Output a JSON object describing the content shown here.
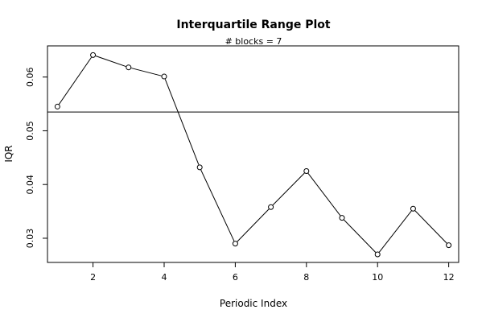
{
  "chart_data": {
    "type": "line",
    "title": "Interquartile Range Plot",
    "subtitle": "# blocks =  7",
    "xlabel": "Periodic Index",
    "ylabel": "IQR",
    "x": [
      1,
      2,
      3,
      4,
      5,
      6,
      7,
      8,
      9,
      10,
      11,
      12
    ],
    "y": [
      0.0545,
      0.0641,
      0.0618,
      0.0601,
      0.0432,
      0.029,
      0.0358,
      0.0425,
      0.0338,
      0.027,
      0.0355,
      0.0287
    ],
    "reference_line": 0.0535,
    "xlim": [
      0.72,
      12.28
    ],
    "ylim": [
      0.0255,
      0.0658
    ],
    "x_ticks": [
      2,
      4,
      6,
      8,
      10,
      12
    ],
    "y_ticks": [
      0.03,
      0.04,
      0.05,
      0.06
    ],
    "x_tick_labels": [
      "2",
      "4",
      "6",
      "8",
      "10",
      "12"
    ],
    "y_tick_labels": [
      "0.03",
      "0.04",
      "0.05",
      "0.06"
    ],
    "grid": false,
    "legend": "none"
  }
}
